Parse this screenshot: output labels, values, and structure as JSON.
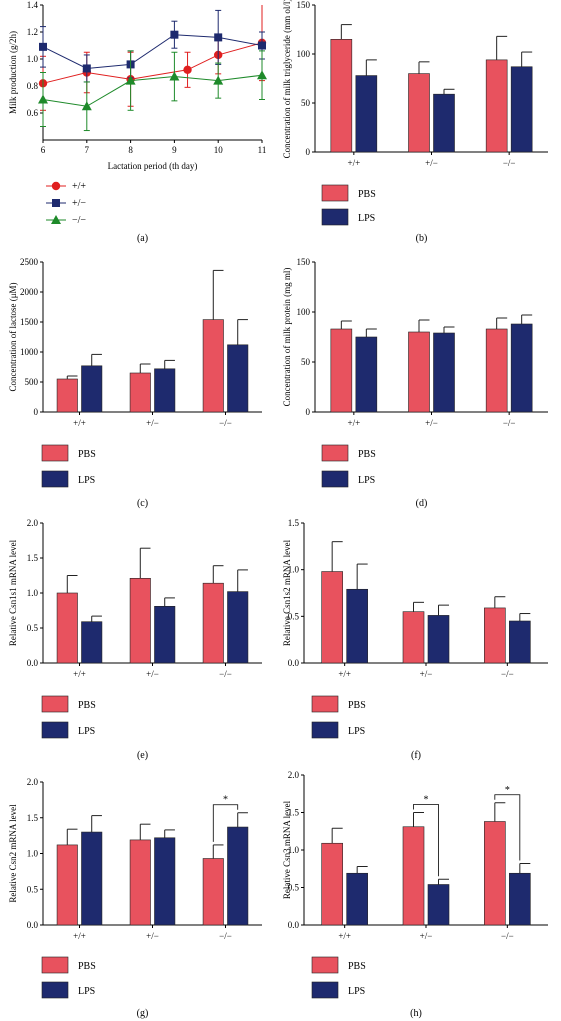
{
  "colors": {
    "pbs": "#e8525e",
    "lps": "#1e2a6e",
    "het": "#1e2a6e",
    "wt": "#e01f1f",
    "ko": "#1e8a2a"
  },
  "chart_data": [
    {
      "id": "a",
      "type": "line",
      "panel_label": "(a)",
      "xlabel": "Lactation period (th day)",
      "ylabel": "Milk production (g/2h)",
      "x": [
        6,
        7,
        8,
        9,
        10,
        11
      ],
      "xlim": [
        6,
        11
      ],
      "ylim": [
        0.4,
        1.4
      ],
      "yticks": [
        "0.6",
        "0.8",
        "1.0",
        "1.2",
        "1.4"
      ],
      "series": [
        {
          "name": "+/+",
          "color": "#e01f1f",
          "marker": "circle",
          "values": [
            0.82,
            0.9,
            0.85,
            0.92,
            1.03,
            1.12
          ],
          "errors": [
            0.2,
            0.15,
            0.2,
            0.13,
            0.14,
            0.28
          ],
          "x": [
            6,
            7,
            8,
            9.3,
            10,
            11
          ]
        },
        {
          "name": "+/−",
          "color": "#1e2a6e",
          "marker": "square",
          "values": [
            1.09,
            0.93,
            0.96,
            1.18,
            1.16,
            1.1
          ],
          "errors": [
            0.15,
            0.1,
            0.1,
            0.1,
            0.2,
            0.1
          ],
          "x": [
            6,
            7,
            8,
            9,
            10,
            11
          ]
        },
        {
          "name": "−/−",
          "color": "#1e8a2a",
          "marker": "triangle",
          "values": [
            0.7,
            0.65,
            0.84,
            0.87,
            0.84,
            0.88
          ],
          "errors": [
            0.2,
            0.18,
            0.22,
            0.18,
            0.13,
            0.18
          ],
          "x": [
            6,
            7,
            8,
            9,
            10,
            11
          ]
        }
      ]
    },
    {
      "id": "b",
      "type": "bar",
      "panel_label": "(b)",
      "ylabel": "Concentration of milk triglyceride (mm ol/l)",
      "categories": [
        "+/+",
        "+/−",
        "−/−"
      ],
      "ylim": [
        0,
        150
      ],
      "yticks": [
        "0",
        "50",
        "100",
        "150"
      ],
      "series": [
        {
          "name": "PBS",
          "values": [
            115,
            80,
            94
          ],
          "errors": [
            15,
            12,
            24
          ]
        },
        {
          "name": "LPS",
          "values": [
            78,
            59,
            87
          ],
          "errors": [
            16,
            5,
            15
          ]
        }
      ],
      "significance": []
    },
    {
      "id": "c",
      "type": "bar",
      "panel_label": "(c)",
      "ylabel": "Concentration of lactose (μM)",
      "categories": [
        "+/+",
        "+/−",
        "−/−"
      ],
      "ylim": [
        0,
        2500
      ],
      "yticks": [
        "0",
        "500",
        "1000",
        "1500",
        "2000",
        "2500"
      ],
      "series": [
        {
          "name": "PBS",
          "values": [
            550,
            650,
            1540
          ],
          "errors": [
            50,
            150,
            820
          ]
        },
        {
          "name": "LPS",
          "values": [
            770,
            720,
            1120
          ],
          "errors": [
            190,
            140,
            420
          ]
        }
      ],
      "significance": []
    },
    {
      "id": "d",
      "type": "bar",
      "panel_label": "(d)",
      "ylabel": "Concentration of milk protein (mg ml)",
      "categories": [
        "+/+",
        "+/−",
        "−/−"
      ],
      "ylim": [
        0,
        150
      ],
      "yticks": [
        "0",
        "50",
        "100",
        "150"
      ],
      "series": [
        {
          "name": "PBS",
          "values": [
            83,
            80,
            83
          ],
          "errors": [
            8,
            12,
            11
          ]
        },
        {
          "name": "LPS",
          "values": [
            75,
            79,
            88
          ],
          "errors": [
            8,
            6,
            9
          ]
        }
      ],
      "significance": []
    },
    {
      "id": "e",
      "type": "bar",
      "panel_label": "(e)",
      "ylabel": "Relative Csn1s1 mRNA level",
      "categories": [
        "+/+",
        "+/−",
        "−/−"
      ],
      "ylim": [
        0,
        2.0
      ],
      "yticks": [
        "0.0",
        "0.5",
        "1.0",
        "1.5",
        "2.0"
      ],
      "series": [
        {
          "name": "PBS",
          "values": [
            1.0,
            1.21,
            1.14
          ],
          "errors": [
            0.25,
            0.43,
            0.25
          ]
        },
        {
          "name": "LPS",
          "values": [
            0.59,
            0.81,
            1.02
          ],
          "errors": [
            0.08,
            0.12,
            0.31
          ]
        }
      ],
      "significance": []
    },
    {
      "id": "f",
      "type": "bar",
      "panel_label": "(f)",
      "ylabel": "Relative Csn1s2 mRNA level",
      "categories": [
        "+/+",
        "+/−",
        "−/−"
      ],
      "ylim": [
        0,
        1.5
      ],
      "yticks": [
        "0.0",
        "0.5",
        "1.0",
        "1.5"
      ],
      "series": [
        {
          "name": "PBS",
          "values": [
            0.98,
            0.55,
            0.59
          ],
          "errors": [
            0.32,
            0.1,
            0.12
          ]
        },
        {
          "name": "LPS",
          "values": [
            0.79,
            0.51,
            0.45
          ],
          "errors": [
            0.27,
            0.11,
            0.08
          ]
        }
      ],
      "significance": []
    },
    {
      "id": "g",
      "type": "bar",
      "panel_label": "(g)",
      "ylabel": "Relative Csn2 mRNA level",
      "categories": [
        "+/+",
        "+/−",
        "−/−"
      ],
      "ylim": [
        0,
        2.0
      ],
      "yticks": [
        "0.0",
        "0.5",
        "1.0",
        "1.5",
        "2.0"
      ],
      "series": [
        {
          "name": "PBS",
          "values": [
            1.12,
            1.19,
            0.93
          ],
          "errors": [
            0.22,
            0.22,
            0.19
          ]
        },
        {
          "name": "LPS",
          "values": [
            1.3,
            1.22,
            1.37
          ],
          "errors": [
            0.23,
            0.11,
            0.2
          ]
        }
      ],
      "significance": [
        {
          "category_index": 2,
          "label": "*"
        }
      ]
    },
    {
      "id": "h",
      "type": "bar",
      "panel_label": "(h)",
      "ylabel": "Relative Csn3 mRNA level",
      "categories": [
        "+/+",
        "+/−",
        "−/−"
      ],
      "ylim": [
        0,
        2.0
      ],
      "yticks": [
        "0.0",
        "0.5",
        "1.0",
        "1.5",
        "2.0"
      ],
      "series": [
        {
          "name": "PBS",
          "values": [
            1.09,
            1.31,
            1.38
          ],
          "errors": [
            0.2,
            0.19,
            0.25
          ]
        },
        {
          "name": "LPS",
          "values": [
            0.69,
            0.54,
            0.69
          ],
          "errors": [
            0.09,
            0.07,
            0.13
          ]
        }
      ],
      "significance": [
        {
          "category_index": 1,
          "label": "*"
        },
        {
          "category_index": 2,
          "label": "*"
        }
      ]
    }
  ]
}
